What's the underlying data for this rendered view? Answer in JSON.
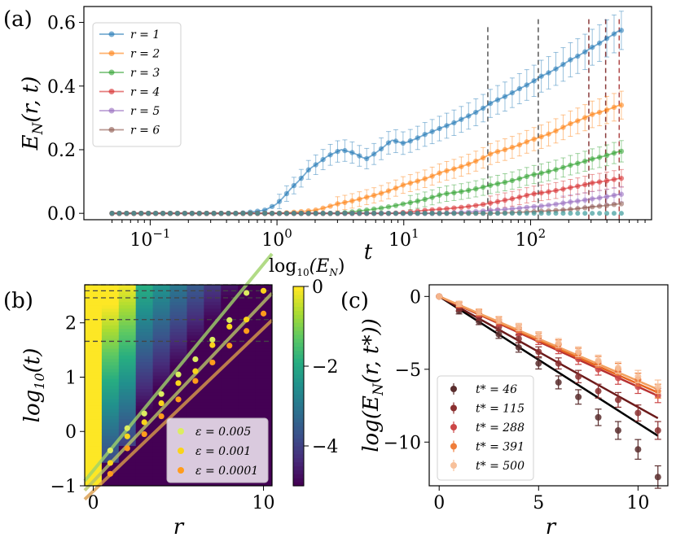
{
  "chart_data": [
    {
      "panel": "(a)",
      "type": "line",
      "xlabel": "t",
      "ylabel": "E_N(r,t)",
      "xscale": "log",
      "xlim": [
        0.03,
        900
      ],
      "ylim": [
        -0.02,
        0.65
      ],
      "xticks": [
        "10^-1",
        "10^0",
        "10^1",
        "10^2"
      ],
      "yticks": [
        "0.0",
        "0.2",
        "0.4",
        "0.6"
      ],
      "legend_position": "top-left",
      "vlines": [
        46,
        115,
        288,
        391,
        500
      ],
      "series": [
        {
          "name": "r = 1",
          "color": "#1f77b4",
          "x": [
            0.05,
            0.5,
            0.8,
            1.0,
            1.3,
            1.8,
            2.5,
            3.2,
            4.0,
            5.0,
            6.0,
            8.0,
            10,
            15,
            20,
            30,
            50,
            80,
            120,
            200,
            300,
            400,
            500
          ],
          "y": [
            0.0,
            0.0,
            0.01,
            0.03,
            0.08,
            0.14,
            0.18,
            0.2,
            0.19,
            0.17,
            0.19,
            0.23,
            0.22,
            0.25,
            0.27,
            0.3,
            0.35,
            0.39,
            0.43,
            0.48,
            0.52,
            0.55,
            0.575
          ]
        },
        {
          "name": "r = 2",
          "color": "#ff7f0e",
          "x": [
            0.05,
            1.0,
            2.0,
            3.0,
            5.0,
            10,
            20,
            50,
            100,
            200,
            300,
            500
          ],
          "y": [
            0.0,
            0.0,
            0.01,
            0.03,
            0.05,
            0.09,
            0.13,
            0.19,
            0.23,
            0.28,
            0.31,
            0.34
          ]
        },
        {
          "name": "r = 3",
          "color": "#2ca02c",
          "x": [
            0.05,
            3.0,
            5.0,
            10,
            20,
            50,
            100,
            200,
            300,
            500
          ],
          "y": [
            0.0,
            0.0,
            0.01,
            0.03,
            0.06,
            0.09,
            0.12,
            0.15,
            0.17,
            0.195
          ]
        },
        {
          "name": "r = 4",
          "color": "#d62728",
          "x": [
            0.05,
            8.0,
            15,
            30,
            60,
            100,
            200,
            300,
            500
          ],
          "y": [
            0.0,
            0.0,
            0.01,
            0.02,
            0.04,
            0.06,
            0.08,
            0.095,
            0.11
          ]
        },
        {
          "name": "r = 5",
          "color": "#9467bd",
          "x": [
            0.05,
            20,
            50,
            100,
            200,
            300,
            500
          ],
          "y": [
            0.0,
            0.0,
            0.01,
            0.02,
            0.035,
            0.045,
            0.06
          ]
        },
        {
          "name": "r = 6",
          "color": "#8c564b",
          "x": [
            0.05,
            50,
            100,
            200,
            300,
            500
          ],
          "y": [
            0.0,
            0.0,
            0.005,
            0.012,
            0.02,
            0.03
          ]
        }
      ]
    },
    {
      "panel": "(b)",
      "type": "heatmap",
      "xlabel": "r",
      "ylabel": "log10(t)",
      "colorbar_label": "log10(E_N)",
      "xlim": [
        -0.5,
        10.5
      ],
      "ylim": [
        -1,
        2.7
      ],
      "xticks": [
        "0",
        "10"
      ],
      "yticks": [
        "−1",
        "0",
        "1",
        "2"
      ],
      "colorbar_range": [
        -5,
        0
      ],
      "colorbar_ticks": [
        "0",
        "−2",
        "−4"
      ],
      "hlines_log10t": [
        1.66,
        2.06,
        2.46,
        2.59,
        2.7
      ],
      "legend_position": "lower-right",
      "series": [
        {
          "name": "ε = 0.005",
          "color": "#dced61",
          "x": [
            1,
            2,
            3,
            4,
            5,
            6,
            7,
            8,
            9
          ],
          "y": [
            -0.35,
            0.06,
            0.33,
            0.69,
            1.05,
            1.33,
            1.69,
            2.05,
            2.55
          ],
          "fit_color": "#9fd36a"
        },
        {
          "name": "ε = 0.001",
          "color": "#f9d41b",
          "x": [
            1,
            2,
            3,
            4,
            5,
            6,
            7,
            8,
            9,
            10
          ],
          "y": [
            -0.58,
            -0.09,
            0.17,
            0.52,
            0.89,
            1.11,
            1.59,
            1.93,
            2.06,
            2.59
          ],
          "fit_color": "#b8c567"
        },
        {
          "name": "ε = 0.0001",
          "color": "#ff9c1c",
          "x": [
            1,
            2,
            3,
            4,
            5,
            6,
            7,
            8,
            9,
            10
          ],
          "y": [
            -0.78,
            -0.31,
            -0.05,
            0.28,
            0.59,
            0.93,
            1.27,
            1.58,
            1.85,
            2.17
          ],
          "fit_color": "#d99c4a"
        }
      ]
    },
    {
      "panel": "(c)",
      "type": "scatter",
      "xlabel": "r",
      "ylabel": "log(E_N(r, t*))",
      "xlim": [
        -0.5,
        11.5
      ],
      "ylim": [
        -13,
        0.8
      ],
      "xticks": [
        "0",
        "5",
        "10"
      ],
      "yticks": [
        "0",
        "−5",
        "−10"
      ],
      "legend_position": "lower-left",
      "series": [
        {
          "name": "t* = 46",
          "color": "#5a2e2e",
          "x": [
            0,
            1,
            2,
            3,
            4,
            5,
            6,
            7,
            8,
            9,
            10,
            11
          ],
          "y": [
            0,
            -1.0,
            -1.7,
            -2.6,
            -3.5,
            -4.6,
            -5.9,
            -6.9,
            -8.3,
            -9.2,
            -10.5,
            -12.4
          ],
          "fit": [
            0,
            -0.87
          ]
        },
        {
          "name": "t* = 115",
          "color": "#8a2f2f",
          "x": [
            0,
            1,
            2,
            3,
            4,
            5,
            6,
            7,
            8,
            9,
            10,
            11
          ],
          "y": [
            0,
            -0.8,
            -1.4,
            -2.1,
            -2.9,
            -3.8,
            -4.6,
            -5.5,
            -6.5,
            -7.1,
            -8.0,
            -9.2
          ],
          "fit": [
            0,
            -0.76
          ]
        },
        {
          "name": "t* = 288",
          "color": "#cc4747",
          "x": [
            0,
            1,
            2,
            3,
            4,
            5,
            6,
            7,
            8,
            9,
            10,
            11
          ],
          "y": [
            0,
            -0.6,
            -1.2,
            -1.8,
            -2.4,
            -3.0,
            -3.6,
            -4.3,
            -5.0,
            -5.6,
            -6.2,
            -6.8
          ],
          "fit": [
            0,
            -0.62
          ]
        },
        {
          "name": "t* = 391",
          "color": "#ef7d3a",
          "x": [
            0,
            1,
            2,
            3,
            4,
            5,
            6,
            7,
            8,
            9,
            10,
            11
          ],
          "y": [
            0,
            -0.55,
            -1.1,
            -1.65,
            -2.2,
            -2.8,
            -3.3,
            -3.9,
            -4.5,
            -5.0,
            -5.7,
            -6.5
          ],
          "fit": [
            0,
            -0.6
          ]
        },
        {
          "name": "t* = 500",
          "color": "#f7c09a",
          "x": [
            0,
            1,
            2,
            3,
            4,
            5,
            6,
            7,
            8,
            9,
            10,
            11
          ],
          "y": [
            0,
            -0.5,
            -1.05,
            -1.6,
            -2.1,
            -2.7,
            -3.2,
            -3.8,
            -4.4,
            -4.9,
            -5.5,
            -6.2
          ],
          "fit": [
            0,
            -0.58
          ]
        }
      ]
    }
  ]
}
